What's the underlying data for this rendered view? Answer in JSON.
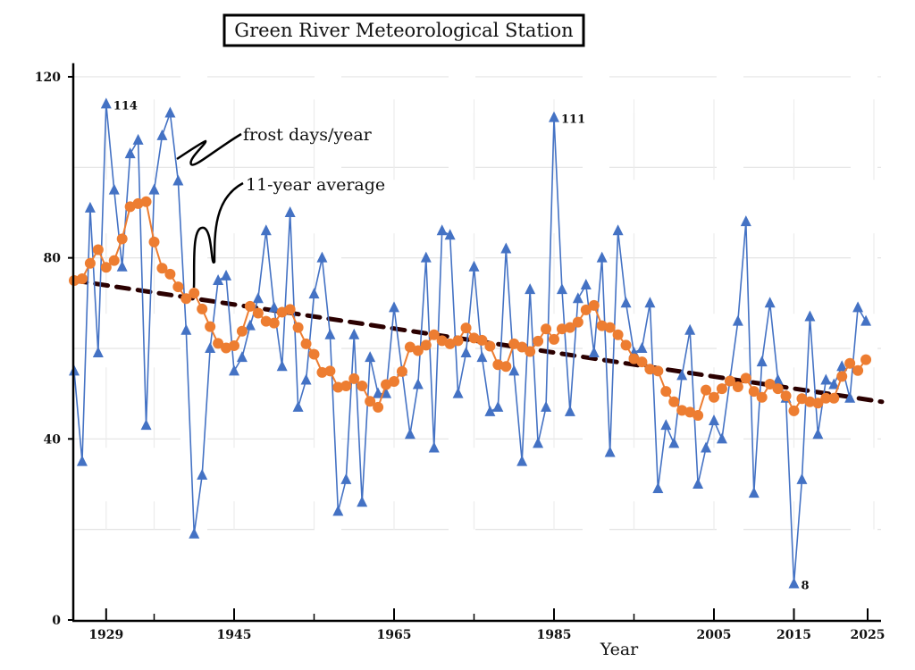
{
  "chart_data": {
    "type": "line",
    "title": "Green River Meteorological Station",
    "xlabel": "Year",
    "ylabel": "",
    "xlim": [
      1925,
      2026
    ],
    "ylim": [
      0,
      123
    ],
    "x_ticks": [
      1929,
      1945,
      1965,
      1985,
      2005,
      2015,
      2025
    ],
    "x_minor_ticks": [
      1935,
      1955,
      1975,
      1995
    ],
    "y_ticks": [
      0,
      40,
      80,
      120
    ],
    "y_minor_ticks": [
      20,
      60,
      100
    ],
    "grid": true,
    "legend": "callouts",
    "colors": {
      "frost": "#4472c4",
      "average": "#ed7d31",
      "trend": "#2b0000"
    },
    "x": [
      1925,
      1926,
      1927,
      1928,
      1929,
      1930,
      1931,
      1932,
      1933,
      1934,
      1935,
      1936,
      1937,
      1938,
      1939,
      1940,
      1941,
      1942,
      1943,
      1944,
      1945,
      1946,
      1947,
      1948,
      1949,
      1950,
      1951,
      1952,
      1953,
      1954,
      1955,
      1956,
      1957,
      1958,
      1959,
      1960,
      1961,
      1962,
      1963,
      1964,
      1965,
      1966,
      1967,
      1968,
      1969,
      1970,
      1971,
      1972,
      1973,
      1974,
      1975,
      1976,
      1977,
      1978,
      1979,
      1980,
      1981,
      1982,
      1983,
      1984,
      1985,
      1986,
      1987,
      1988,
      1989,
      1990,
      1991,
      1992,
      1993,
      1994,
      1995,
      1996,
      1997,
      1998,
      1999,
      2000,
      2001,
      2002,
      2003,
      2004,
      2005,
      2006,
      2007,
      2008,
      2009,
      2010,
      2011,
      2012,
      2013,
      2014,
      2015,
      2016,
      2017,
      2018,
      2019,
      2020,
      2021,
      2022,
      2023,
      2024
    ],
    "series": [
      {
        "name": "frost days/year",
        "marker": "triangle",
        "values": [
          55,
          35,
          91,
          59,
          114,
          95,
          78,
          103,
          106,
          43,
          95,
          107,
          112,
          97,
          64,
          19,
          32,
          60,
          75,
          76,
          55,
          58,
          65,
          71,
          86,
          69,
          56,
          90,
          47,
          53,
          72,
          80,
          63,
          24,
          31,
          63,
          26,
          58,
          50,
          50,
          69,
          55,
          41,
          52,
          80,
          38,
          86,
          85,
          50,
          59,
          78,
          58,
          46,
          47,
          82,
          55,
          35,
          73,
          39,
          47,
          111,
          73,
          46,
          71,
          74,
          59,
          80,
          37,
          86,
          70,
          59,
          60,
          70,
          29,
          43,
          39,
          54,
          64,
          30,
          38,
          44,
          40,
          53,
          66,
          88,
          28,
          57,
          70,
          53,
          49,
          8,
          31,
          67,
          41,
          53,
          52,
          56,
          49,
          69,
          66
        ]
      },
      {
        "name": "11-year average",
        "marker": "circle",
        "values": [
          75,
          75.4,
          78.8,
          81.8,
          77.9,
          79.4,
          84.2,
          91.3,
          92,
          92.4,
          83.5,
          77.7,
          76.4,
          73.6,
          71,
          72.2,
          68.7,
          64.8,
          61.1,
          60.1,
          60.6,
          63.8,
          69.3,
          67.8,
          66,
          65.6,
          68,
          68.6,
          64.6,
          61,
          58.7,
          54.7,
          55,
          51.4,
          51.7,
          53.3,
          51.7,
          48.3,
          47,
          52,
          52.7,
          54.9,
          60.3,
          59.5,
          60.7,
          63,
          61.7,
          61,
          61.7,
          64.5,
          62.3,
          61.8,
          60.5,
          56.4,
          56,
          61,
          60.3,
          59.3,
          61.6,
          64.3,
          62,
          64.3,
          64.6,
          65.8,
          68.5,
          69.5,
          65,
          64.6,
          63,
          60.7,
          57.7,
          57,
          55.4,
          55,
          50.5,
          48.2,
          46.3,
          45.9,
          45.2,
          50.8,
          49.2,
          51.1,
          52.8,
          51.5,
          53.4,
          50.5,
          49.2,
          52.1,
          51.1,
          49.5,
          46.2,
          48.9,
          48.2,
          47.9,
          49,
          49,
          53.8,
          56.7,
          55.1,
          57.5
        ]
      },
      {
        "name": "",
        "style": "dashed trend",
        "x": [
          1925,
          2026
        ],
        "values": [
          75,
          48.2
        ]
      }
    ],
    "annotations": [
      {
        "x": 1929,
        "y": 114,
        "text": "114"
      },
      {
        "x": 1985,
        "y": 111,
        "text": "111"
      },
      {
        "x": 2015,
        "y": 8,
        "text": "8"
      }
    ],
    "callouts": {
      "frost": "frost days/year",
      "average": "11-year average"
    }
  }
}
